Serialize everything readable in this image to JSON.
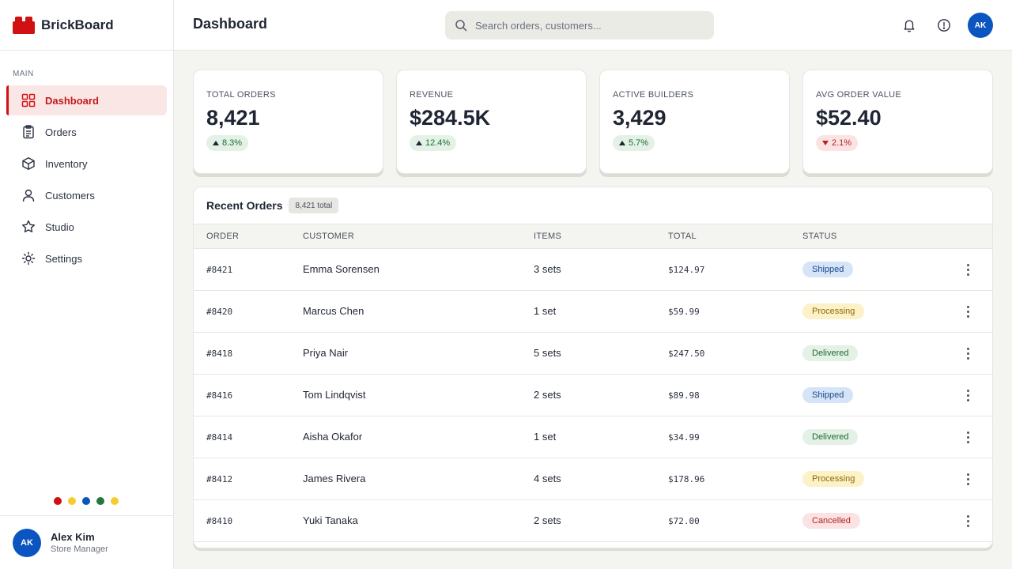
{
  "brand": {
    "name": "BrickBoard"
  },
  "sidebar": {
    "section": "MAIN",
    "items": [
      {
        "label": "Dashboard",
        "icon": "grid-icon",
        "active": true
      },
      {
        "label": "Orders",
        "icon": "clipboard-icon"
      },
      {
        "label": "Inventory",
        "icon": "box-icon"
      },
      {
        "label": "Customers",
        "icon": "user-icon"
      },
      {
        "label": "Studio",
        "icon": "star-icon"
      },
      {
        "label": "Settings",
        "icon": "gear-icon"
      }
    ],
    "dot_colors": [
      "#d01012",
      "#f5cd2f",
      "#0b55c0",
      "#237841",
      "#f5cd2f"
    ]
  },
  "user": {
    "initials": "AK",
    "name": "Alex Kim",
    "role": "Store Manager"
  },
  "header": {
    "title": "Dashboard",
    "search_placeholder": "Search orders, customers...",
    "avatar_initials": "AK"
  },
  "stats": [
    {
      "label": "TOTAL ORDERS",
      "value": "8,421",
      "trend": "8.3%",
      "direction": "up"
    },
    {
      "label": "REVENUE",
      "value": "$284.5K",
      "trend": "12.4%",
      "direction": "up"
    },
    {
      "label": "ACTIVE BUILDERS",
      "value": "3,429",
      "trend": "5.7%",
      "direction": "up"
    },
    {
      "label": "AVG ORDER VALUE",
      "value": "$52.40",
      "trend": "2.1%",
      "direction": "down"
    }
  ],
  "orders": {
    "title": "Recent Orders",
    "count": "8,421 total",
    "columns": [
      "ORDER",
      "CUSTOMER",
      "ITEMS",
      "TOTAL",
      "STATUS"
    ],
    "rows": [
      {
        "order": "#8421",
        "customer": "Emma Sorensen",
        "items": "3 sets",
        "total": "$124.97",
        "status": "Shipped"
      },
      {
        "order": "#8420",
        "customer": "Marcus Chen",
        "items": "1 set",
        "total": "$59.99",
        "status": "Processing"
      },
      {
        "order": "#8418",
        "customer": "Priya Nair",
        "items": "5 sets",
        "total": "$247.50",
        "status": "Delivered"
      },
      {
        "order": "#8416",
        "customer": "Tom Lindqvist",
        "items": "2 sets",
        "total": "$89.98",
        "status": "Shipped"
      },
      {
        "order": "#8414",
        "customer": "Aisha Okafor",
        "items": "1 set",
        "total": "$34.99",
        "status": "Delivered"
      },
      {
        "order": "#8412",
        "customer": "James Rivera",
        "items": "4 sets",
        "total": "$178.96",
        "status": "Processing"
      },
      {
        "order": "#8410",
        "customer": "Yuki Tanaka",
        "items": "2 sets",
        "total": "$72.00",
        "status": "Cancelled"
      }
    ]
  },
  "status_colors": {
    "Shipped": {
      "bg": "#d6e4f7",
      "fg": "#1a4a8c"
    },
    "Processing": {
      "bg": "#fdf1c7",
      "fg": "#8a6a06"
    },
    "Delivered": {
      "bg": "#e3f1e6",
      "fg": "#1f6b35"
    },
    "Cancelled": {
      "bg": "#fbe3e3",
      "fg": "#b42323"
    }
  }
}
